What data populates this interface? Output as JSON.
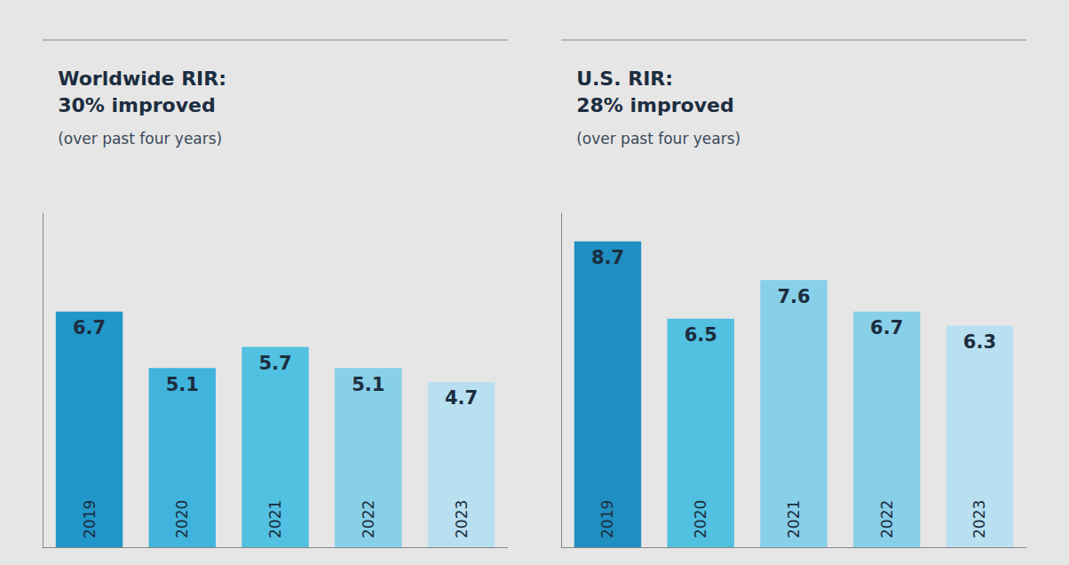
{
  "chart_data": [
    {
      "type": "bar",
      "title": "Worldwide RIR:\n30% improved",
      "subtitle": "(over past four years)",
      "categories": [
        "2019",
        "2020",
        "2021",
        "2022",
        "2023"
      ],
      "values": [
        6.7,
        5.1,
        5.7,
        5.1,
        4.7
      ],
      "colors": [
        "#2196c8",
        "#40b4dc",
        "#52c0e0",
        "#88cfe8",
        "#b8e0f0"
      ],
      "ylim": [
        0,
        9.5
      ],
      "grid": false,
      "data_labels": true,
      "tick_labels": "x"
    },
    {
      "type": "bar",
      "title": "U.S. RIR:\n28% improved",
      "subtitle": "(over past four years)",
      "categories": [
        "2019",
        "2020",
        "2021",
        "2022",
        "2023"
      ],
      "values": [
        8.7,
        6.5,
        7.6,
        6.7,
        6.3
      ],
      "colors": [
        "#1e8fc0",
        "#52c0e0",
        "#88cfe8",
        "#88cfe8",
        "#b8e0f0"
      ],
      "ylim": [
        0,
        9.5
      ],
      "grid": false,
      "data_labels": true,
      "tick_labels": "x"
    }
  ]
}
